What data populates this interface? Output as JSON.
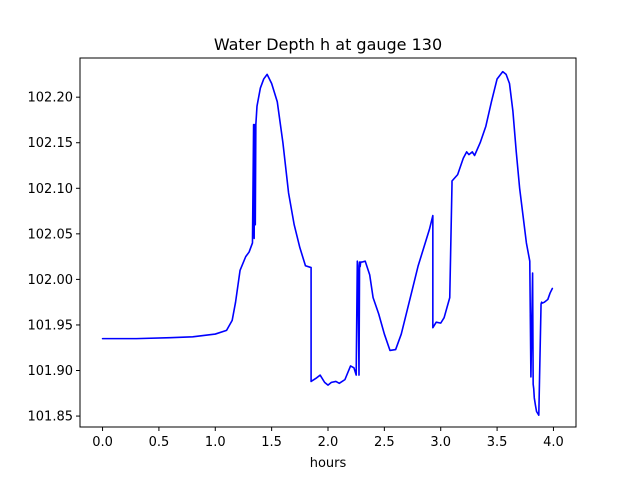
{
  "chart_data": {
    "type": "line",
    "title": "Water Depth h at gauge 130",
    "xlabel": "hours",
    "ylabel": "",
    "xlim": [
      -0.2,
      4.2
    ],
    "ylim": [
      101.838,
      102.243
    ],
    "xticks": [
      0.0,
      0.5,
      1.0,
      1.5,
      2.0,
      2.5,
      3.0,
      3.5,
      4.0
    ],
    "xtick_labels": [
      "0.0",
      "0.5",
      "1.0",
      "1.5",
      "2.0",
      "2.5",
      "3.0",
      "3.5",
      "4.0"
    ],
    "yticks": [
      101.85,
      101.9,
      101.95,
      102.0,
      102.05,
      102.1,
      102.15,
      102.2
    ],
    "ytick_labels": [
      "101.85",
      "101.90",
      "101.95",
      "102.00",
      "102.05",
      "102.10",
      "102.15",
      "102.20"
    ],
    "grid": false,
    "series": [
      {
        "color": "#0000ff",
        "x": [
          0.0,
          0.3,
          0.6,
          0.8,
          1.0,
          1.1,
          1.15,
          1.18,
          1.22,
          1.27,
          1.3,
          1.33,
          1.34,
          1.345,
          1.35,
          1.355,
          1.36,
          1.365,
          1.37,
          1.4,
          1.43,
          1.46,
          1.5,
          1.55,
          1.6,
          1.65,
          1.7,
          1.75,
          1.8,
          1.85,
          1.85,
          1.9,
          1.93,
          1.97,
          2.0,
          2.03,
          2.07,
          2.1,
          2.15,
          2.2,
          2.23,
          2.25,
          2.26,
          2.265,
          2.275,
          2.28,
          2.285,
          2.29,
          2.3,
          2.33,
          2.37,
          2.4,
          2.45,
          2.5,
          2.55,
          2.6,
          2.65,
          2.7,
          2.75,
          2.8,
          2.85,
          2.9,
          2.93,
          2.93,
          2.96,
          3.0,
          3.03,
          3.08,
          3.1,
          3.1,
          3.15,
          3.2,
          3.23,
          3.25,
          3.28,
          3.3,
          3.35,
          3.4,
          3.45,
          3.5,
          3.55,
          3.58,
          3.61,
          3.64,
          3.67,
          3.7,
          3.73,
          3.76,
          3.79,
          3.8,
          3.815,
          3.82,
          3.825,
          3.83,
          3.84,
          3.85,
          3.87,
          3.89,
          3.895,
          3.9,
          3.92,
          3.95,
          3.97,
          3.99
        ],
        "y": [
          101.935,
          101.935,
          101.936,
          101.937,
          101.94,
          101.944,
          101.955,
          101.975,
          102.01,
          102.025,
          102.03,
          102.04,
          102.17,
          102.045,
          102.17,
          102.06,
          102.17,
          102.18,
          102.19,
          102.21,
          102.22,
          102.225,
          102.215,
          102.195,
          102.15,
          102.095,
          102.06,
          102.035,
          102.015,
          102.013,
          101.888,
          101.892,
          101.895,
          101.887,
          101.884,
          101.887,
          101.888,
          101.886,
          101.89,
          101.905,
          101.903,
          101.895,
          102.02,
          102.015,
          101.895,
          102.019,
          102.014,
          102.019,
          102.019,
          102.02,
          102.005,
          101.98,
          101.962,
          101.94,
          101.922,
          101.923,
          101.94,
          101.965,
          101.99,
          102.015,
          102.035,
          102.055,
          102.07,
          101.947,
          101.953,
          101.952,
          101.958,
          101.98,
          102.105,
          102.108,
          102.115,
          102.133,
          102.14,
          102.137,
          102.14,
          102.136,
          102.15,
          102.168,
          102.195,
          102.22,
          102.228,
          102.225,
          102.215,
          102.185,
          102.14,
          102.1,
          102.07,
          102.04,
          102.02,
          101.893,
          102.007,
          101.885,
          101.88,
          101.87,
          101.862,
          101.855,
          101.851,
          101.973,
          101.975,
          101.974,
          101.975,
          101.978,
          101.985,
          101.99
        ]
      }
    ]
  }
}
